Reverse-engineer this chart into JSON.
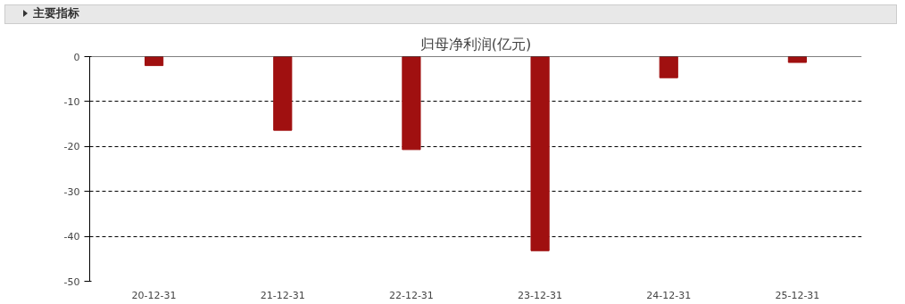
{
  "chart_data": {
    "type": "bar",
    "title": "归母净利润(亿元)",
    "annotations": [
      "主要指标"
    ],
    "categories": [
      "20-12-31",
      "21-12-31",
      "22-12-31",
      "23-12-31",
      "24-12-31",
      "25-12-31"
    ],
    "values": [
      -2.0,
      -16.4,
      -20.7,
      -43.2,
      -4.7,
      -1.3
    ],
    "color": "#a01010",
    "ylim": [
      -50,
      0
    ],
    "yticks": [
      0,
      -10,
      -20,
      -30,
      -40,
      -50
    ],
    "grid": "y"
  }
}
